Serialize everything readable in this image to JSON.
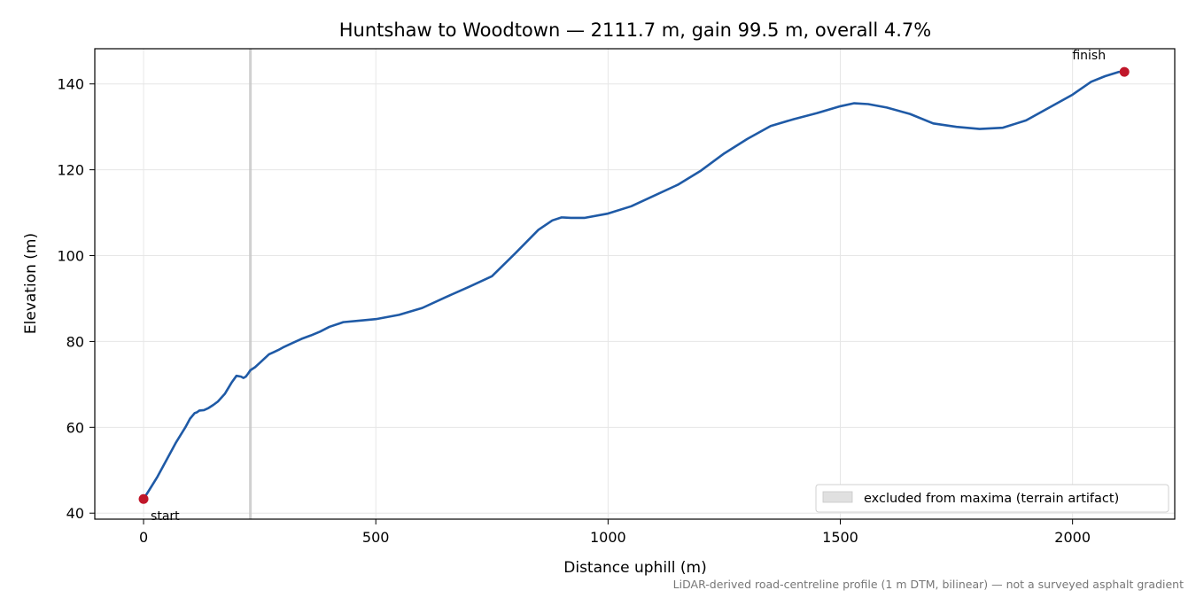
{
  "chart_data": {
    "type": "line",
    "title": "Huntshaw to Woodtown — 2111.7 m, gain 99.5 m, overall 4.7%",
    "xlabel": "Distance uphill (m)",
    "ylabel": "Elevation (m)",
    "xlim": [
      -105,
      2220
    ],
    "ylim": [
      38.6,
      148.2
    ],
    "xticks": [
      0,
      500,
      1000,
      1500,
      2000
    ],
    "yticks": [
      40,
      60,
      80,
      100,
      120,
      140
    ],
    "grid": true,
    "series": [
      {
        "color": "#1f5aa6",
        "x": [
          0,
          10,
          30,
          50,
          70,
          90,
          100,
          110,
          115,
          120,
          130,
          140,
          150,
          160,
          175,
          190,
          200,
          210,
          215,
          220,
          225,
          230,
          240,
          250,
          260,
          270,
          280,
          290,
          300,
          320,
          340,
          360,
          380,
          400,
          430,
          470,
          500,
          550,
          600,
          650,
          700,
          750,
          800,
          850,
          880,
          900,
          920,
          950,
          1000,
          1050,
          1100,
          1150,
          1200,
          1250,
          1300,
          1350,
          1400,
          1450,
          1500,
          1530,
          1560,
          1600,
          1650,
          1700,
          1750,
          1800,
          1850,
          1900,
          1950,
          2000,
          2040,
          2070,
          2100,
          2111.7
        ],
        "y": [
          43.3,
          45.0,
          48.5,
          52.5,
          56.5,
          60.0,
          62.0,
          63.3,
          63.5,
          63.9,
          64.0,
          64.5,
          65.2,
          66.0,
          67.8,
          70.5,
          72.0,
          71.8,
          71.5,
          71.8,
          72.5,
          73.3,
          74.0,
          75.0,
          76.0,
          77.0,
          77.5,
          78.0,
          78.6,
          79.6,
          80.6,
          81.4,
          82.3,
          83.4,
          84.5,
          84.9,
          85.2,
          86.2,
          87.8,
          90.3,
          92.7,
          95.2,
          100.5,
          106.0,
          108.2,
          108.9,
          108.8,
          108.8,
          109.8,
          111.5,
          114.0,
          116.5,
          119.8,
          123.8,
          127.2,
          130.2,
          131.8,
          133.2,
          134.8,
          135.5,
          135.3,
          134.5,
          133.0,
          130.8,
          130.0,
          129.5,
          129.8,
          131.5,
          134.5,
          137.5,
          140.5,
          141.8,
          142.8,
          142.8
        ]
      }
    ],
    "markers": [
      {
        "x": 0,
        "y": 43.3,
        "label": "start",
        "color": "#c0172a"
      },
      {
        "x": 2111.7,
        "y": 142.8,
        "label": "finish",
        "color": "#c0172a"
      }
    ],
    "excluded_line_x": 230,
    "legend": {
      "placement": "lower-right",
      "entries": [
        {
          "label": "excluded from maxima (terrain artifact)",
          "color": "#e0e0e0"
        }
      ]
    },
    "footnote": "LiDAR-derived road-centreline profile (1 m DTM, bilinear) — not a surveyed asphalt gradient"
  }
}
